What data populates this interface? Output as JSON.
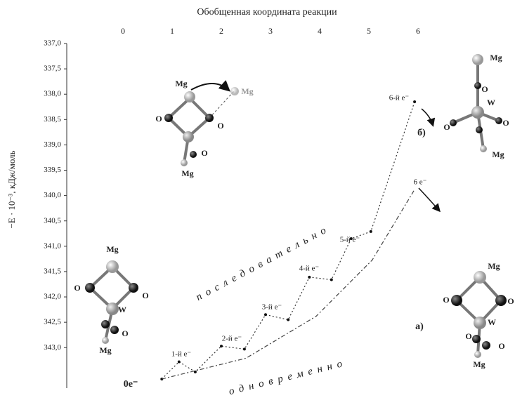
{
  "chart_data": {
    "type": "line",
    "title": "Обобщенная координата  реакции",
    "ylabel": "−E · 10⁻³, кДж/моль",
    "y_reversed": true,
    "xlim": [
      -1.2,
      7.8
    ],
    "xticks": [
      0,
      1,
      2,
      3,
      4,
      5,
      6
    ],
    "ylim": [
      337.0,
      343.8
    ],
    "yticks": [
      {
        "value": 337.0,
        "label": "337,0"
      },
      {
        "value": 337.5,
        "label": "337,5"
      },
      {
        "value": 338.0,
        "label": "338,0"
      },
      {
        "value": 338.5,
        "label": "338,5"
      },
      {
        "value": 339.0,
        "label": "339,0"
      },
      {
        "value": 339.5,
        "label": "339,5"
      },
      {
        "value": 340.0,
        "label": "340,0"
      },
      {
        "value": 340.5,
        "label": "340,5"
      },
      {
        "value": 341.0,
        "label": "341,0"
      },
      {
        "value": 341.5,
        "label": "341,5"
      },
      {
        "value": 342.0,
        "label": "342,0"
      },
      {
        "value": 342.5,
        "label": "342,5"
      },
      {
        "value": 343.0,
        "label": "343,0"
      }
    ],
    "series": [
      {
        "name": "последовательно",
        "color": "#333333",
        "x": [
          0.79,
          1.14,
          1.47,
          2.0,
          2.47,
          2.9,
          3.36,
          3.79,
          4.24,
          4.64,
          5.04,
          5.93
        ],
        "values": [
          343.62,
          343.28,
          343.48,
          342.97,
          343.03,
          342.35,
          342.45,
          341.61,
          341.66,
          340.85,
          340.71,
          338.15
        ]
      },
      {
        "name": "одновременно",
        "color": "#444444",
        "x": [
          0.79,
          2.5,
          3.93,
          5.07,
          5.93
        ],
        "values": [
          343.62,
          343.21,
          342.38,
          341.27,
          339.88
        ]
      }
    ],
    "annotations": [
      "0e⁻",
      "1-й e⁻",
      "2-й e⁻",
      "3-й e⁻",
      "4-й e⁻",
      "5-й e⁻",
      "6-й e⁻",
      "6 e⁻",
      "б)",
      "а)"
    ],
    "diagram_labels": [
      "Mg",
      "Mg",
      "O",
      "O",
      "O",
      "Mg",
      "Mg",
      "O",
      "O",
      "W",
      "O",
      "Mg",
      "Mg",
      "O",
      "W",
      "O",
      "O",
      "Mg",
      "Mg",
      "O",
      "O",
      "W",
      "O",
      "O",
      "Mg"
    ]
  }
}
